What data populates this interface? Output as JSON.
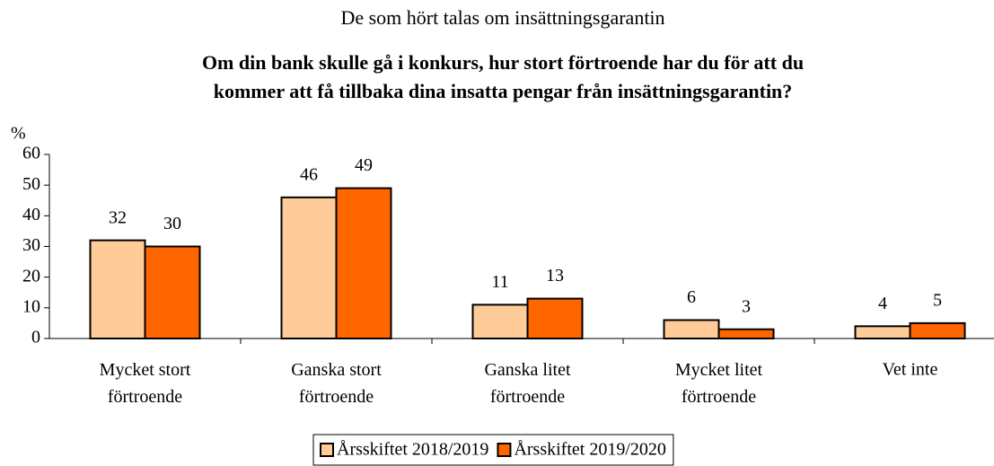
{
  "chart_data": {
    "type": "bar",
    "title": "De som hört talas om insättningsgarantin",
    "subtitle": "Om din bank skulle gå i konkurs, hur stort förtroende har du för att du\nkommer att få tillbaka dina insatta pengar från insättningsgarantin?",
    "y_label": "%",
    "categories": [
      "Mycket stort\nförtroende",
      "Ganska stort\nförtroende",
      "Ganska litet\nförtroende",
      "Mycket litet\nförtroende",
      "Vet inte"
    ],
    "series": [
      {
        "name": "Årsskiftet 2018/2019",
        "color": "#FFCC99",
        "values": [
          32,
          46,
          11,
          6,
          4
        ]
      },
      {
        "name": "Årsskiftet 2019/2020",
        "color": "#FF6600",
        "values": [
          30,
          49,
          13,
          3,
          5
        ]
      }
    ],
    "ylim": [
      0,
      60
    ],
    "yticks": [
      0,
      10,
      20,
      30,
      40,
      50,
      60
    ],
    "grid": false,
    "legend": "bottom"
  }
}
